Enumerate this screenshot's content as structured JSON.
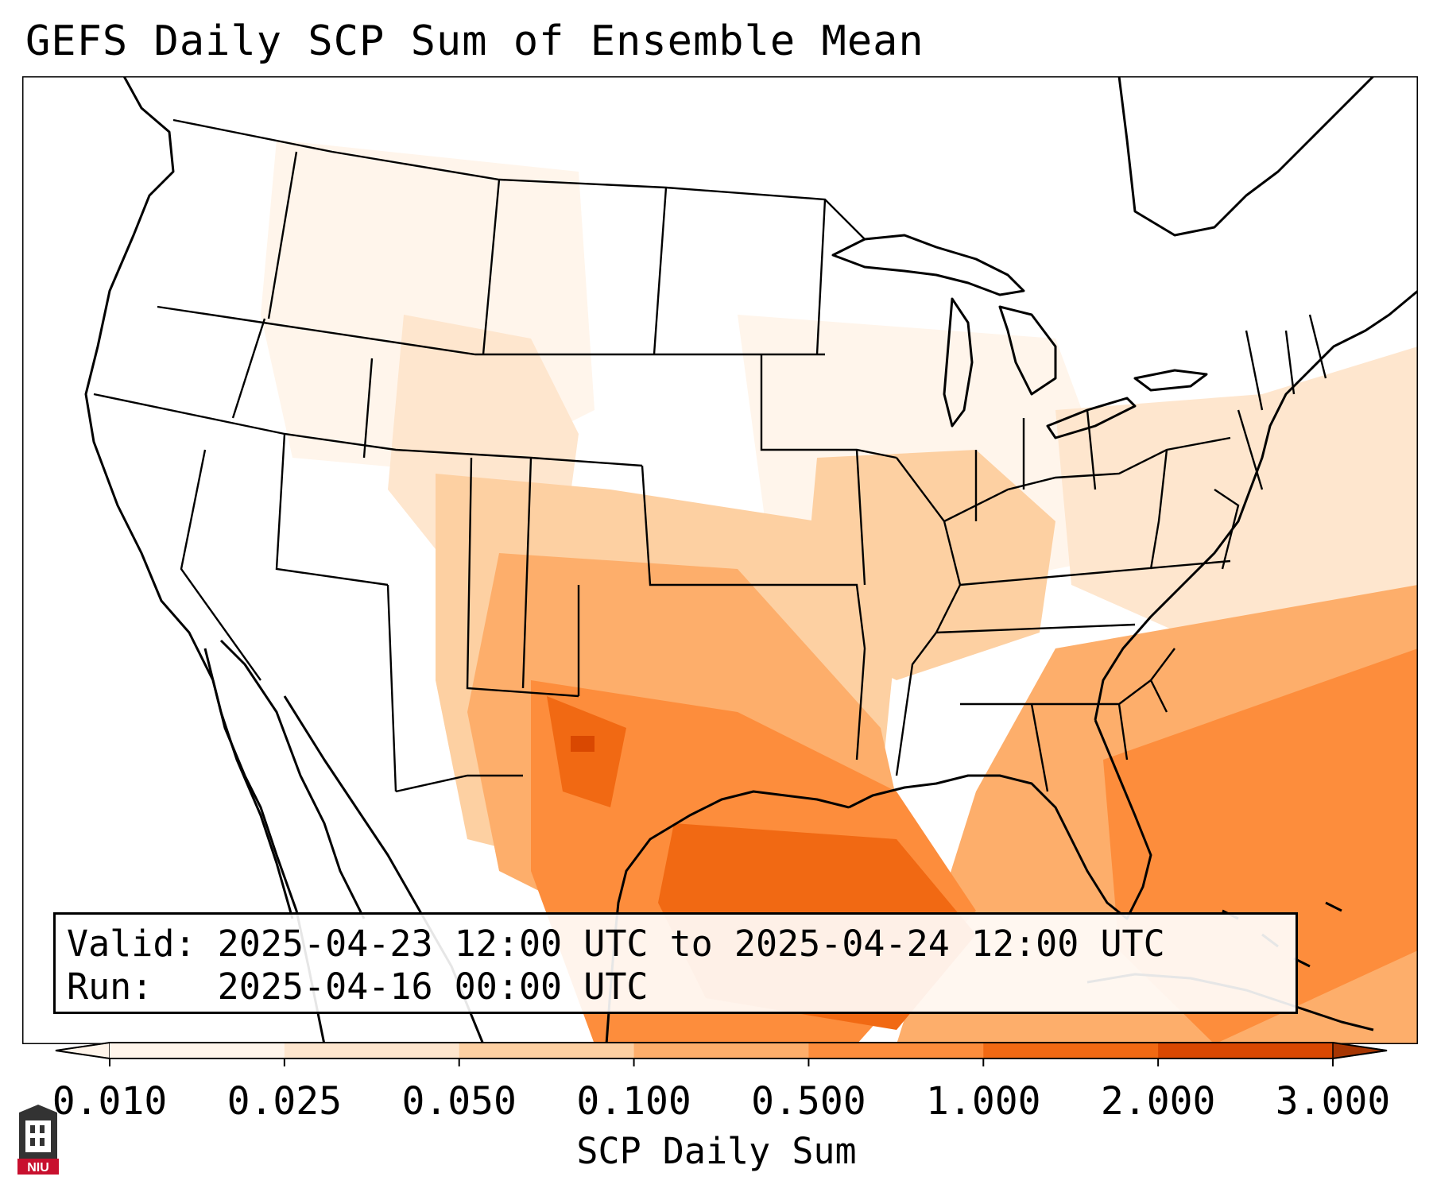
{
  "title": "GEFS Daily SCP Sum of Ensemble Mean",
  "info": {
    "valid_label": "Valid:",
    "valid_value": "2025-04-23 12:00 UTC to 2025-04-24 12:00 UTC",
    "run_label": "Run:",
    "run_value": "2025-04-16 00:00 UTC"
  },
  "colorbar": {
    "label": "SCP Daily Sum",
    "ticks": [
      "0.010",
      "0.025",
      "0.050",
      "0.100",
      "0.500",
      "1.000",
      "2.000",
      "3.000"
    ],
    "colors": [
      "#fff5eb",
      "#fee6ce",
      "#fdd0a2",
      "#fdae6b",
      "#fd8d3c",
      "#f16913",
      "#d94801",
      "#a63603"
    ],
    "extend": "both"
  },
  "logo": {
    "text": "NIU",
    "bg": "#c8102e"
  },
  "map": {
    "coastline_color": "#000000",
    "field_colors": [
      "#fff5eb",
      "#fee6ce",
      "#fdd0a2",
      "#fdae6b",
      "#fd8d3c",
      "#f16913",
      "#d94801"
    ]
  }
}
